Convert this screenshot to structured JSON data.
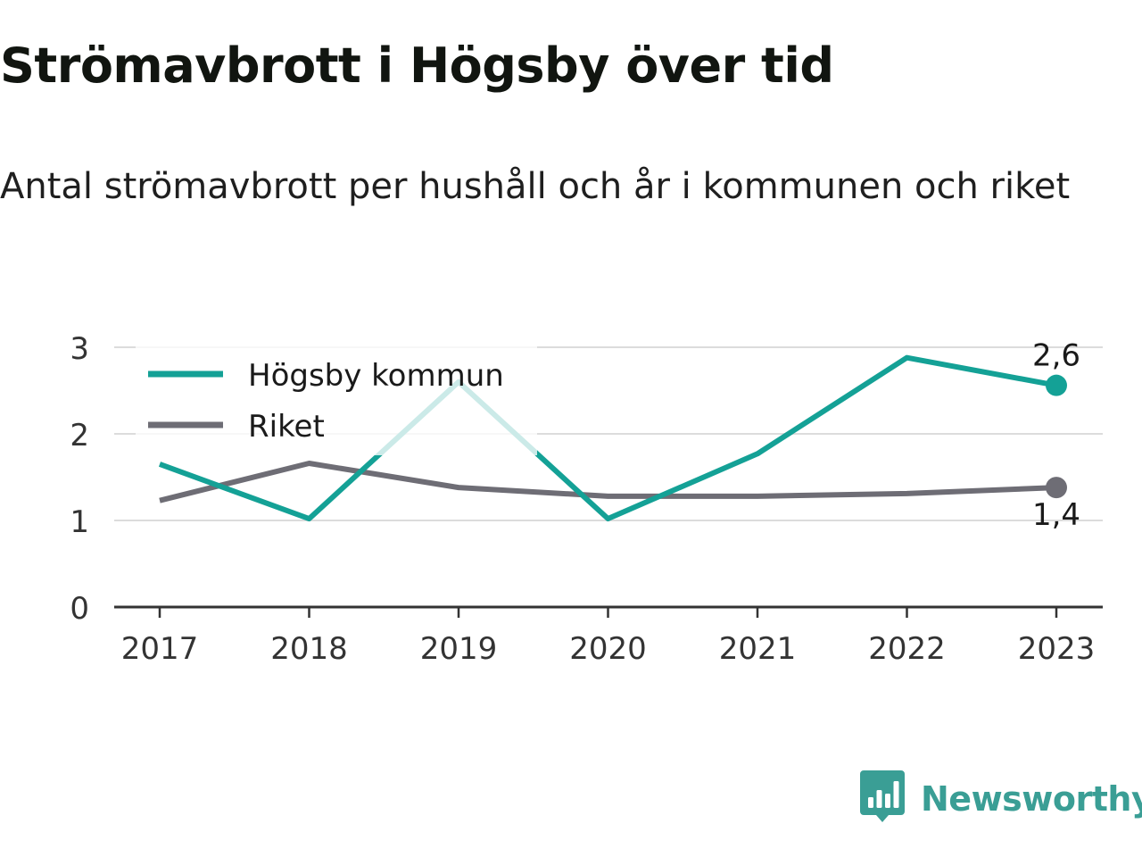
{
  "title": "Strömavbrott i Högsby över tid",
  "subtitle": "Antal strömavbrott per hushåll och år i kommunen och riket",
  "brand": {
    "name": "Newsworthy",
    "icon": "bar-chart-speech-bubble-icon",
    "color": "#3a9e95"
  },
  "chart_data": {
    "type": "line",
    "title": "Strömavbrott i Högsby över tid",
    "subtitle": "Antal strömavbrott per hushåll och år i kommunen och riket",
    "xlabel": "",
    "ylabel": "",
    "categories": [
      "2017",
      "2018",
      "2019",
      "2020",
      "2021",
      "2022",
      "2023"
    ],
    "ylim": [
      0,
      3
    ],
    "yticks": [
      "0",
      "1",
      "2",
      "3"
    ],
    "grid": true,
    "legend": "top-left",
    "series": [
      {
        "name": "Högsby kommun",
        "color": "#14a196",
        "values": [
          1.65,
          1.02,
          2.6,
          1.02,
          1.77,
          2.88,
          2.56
        ],
        "end_label": "2,6"
      },
      {
        "name": "Riket",
        "color": "#6e6d75",
        "values": [
          1.23,
          1.66,
          1.38,
          1.28,
          1.28,
          1.31,
          1.38
        ],
        "end_label": "1,4"
      }
    ]
  }
}
